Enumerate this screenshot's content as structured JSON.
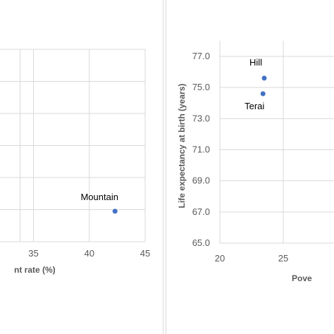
{
  "colors": {
    "marker": "#4472C4",
    "grid": "#d9d9d9",
    "tick_text": "#595959"
  },
  "chart_data": [
    {
      "type": "scatter",
      "xlabel": "nt rate (%)",
      "ylabel": "",
      "xlim": [
        32,
        45
      ],
      "x_ticks": [
        "35",
        "40",
        "45"
      ],
      "grid": true,
      "points": [
        {
          "label": "Mountain",
          "x": 42.3,
          "y": 66.9
        }
      ]
    },
    {
      "type": "scatter",
      "xlabel": "Pove",
      "ylabel": "Life expectancy at birth (years)",
      "xlim": [
        20,
        28
      ],
      "ylim": [
        65.0,
        78.0
      ],
      "x_ticks": [
        "20",
        "25"
      ],
      "y_ticks": [
        "65.0",
        "67.0",
        "69.0",
        "71.0",
        "73.0",
        "75.0",
        "77.0"
      ],
      "grid": true,
      "points": [
        {
          "label": "Hill",
          "x": 23.5,
          "y": 75.6
        },
        {
          "label": "Terai",
          "x": 23.4,
          "y": 74.6
        }
      ]
    }
  ]
}
